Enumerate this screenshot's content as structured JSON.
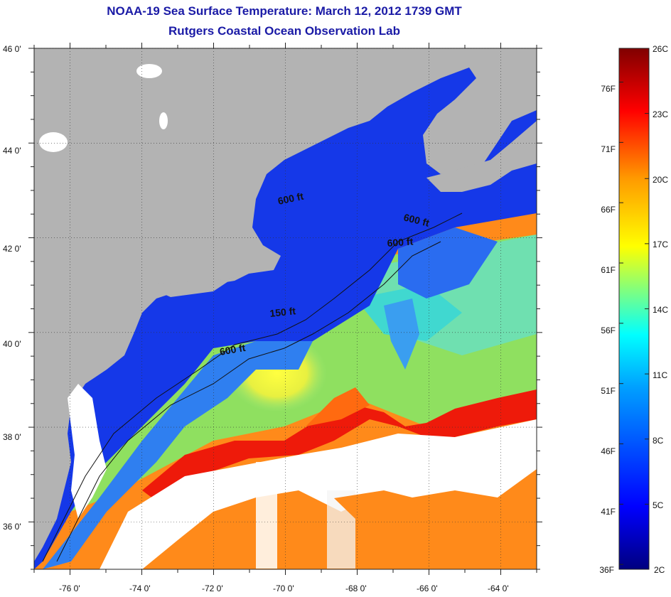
{
  "title": {
    "line1": "NOAA-19 Sea Surface Temperature:  March 12, 2012 1739 GMT",
    "line2": "Rutgers Coastal Ocean Observation Lab"
  },
  "colors": {
    "title": "#1a1aa6",
    "land": "#b3b3b3",
    "cloud": "#ffffff",
    "cold": "#0a1fd6",
    "mid": "#3fd6d6",
    "warm": "#ff6a00",
    "hot": "#e80000"
  },
  "map": {
    "lat_ticks": [
      "46 0'",
      "44 0'",
      "42 0'",
      "40 0'",
      "38 0'",
      "36 0'"
    ],
    "lon_ticks": [
      "-76 0'",
      "-74 0'",
      "-72 0'",
      "-70 0'",
      "-68 0'",
      "-66 0'",
      "-64 0'"
    ],
    "lat_range": [
      35,
      46
    ],
    "lon_range": [
      -77,
      -63
    ],
    "contour_labels": [
      "600 ft",
      "600 ft",
      "600 ft",
      "150 ft",
      "600 ft"
    ]
  },
  "colorbar": {
    "fahrenheit_labels": [
      "76F",
      "71F",
      "66F",
      "61F",
      "56F",
      "51F",
      "46F",
      "41F",
      "36F"
    ],
    "celsius_labels": [
      "26C",
      "23C",
      "20C",
      "17C",
      "14C",
      "11C",
      "8C",
      "5C",
      "2C"
    ],
    "celsius_range": [
      2,
      26
    ]
  }
}
